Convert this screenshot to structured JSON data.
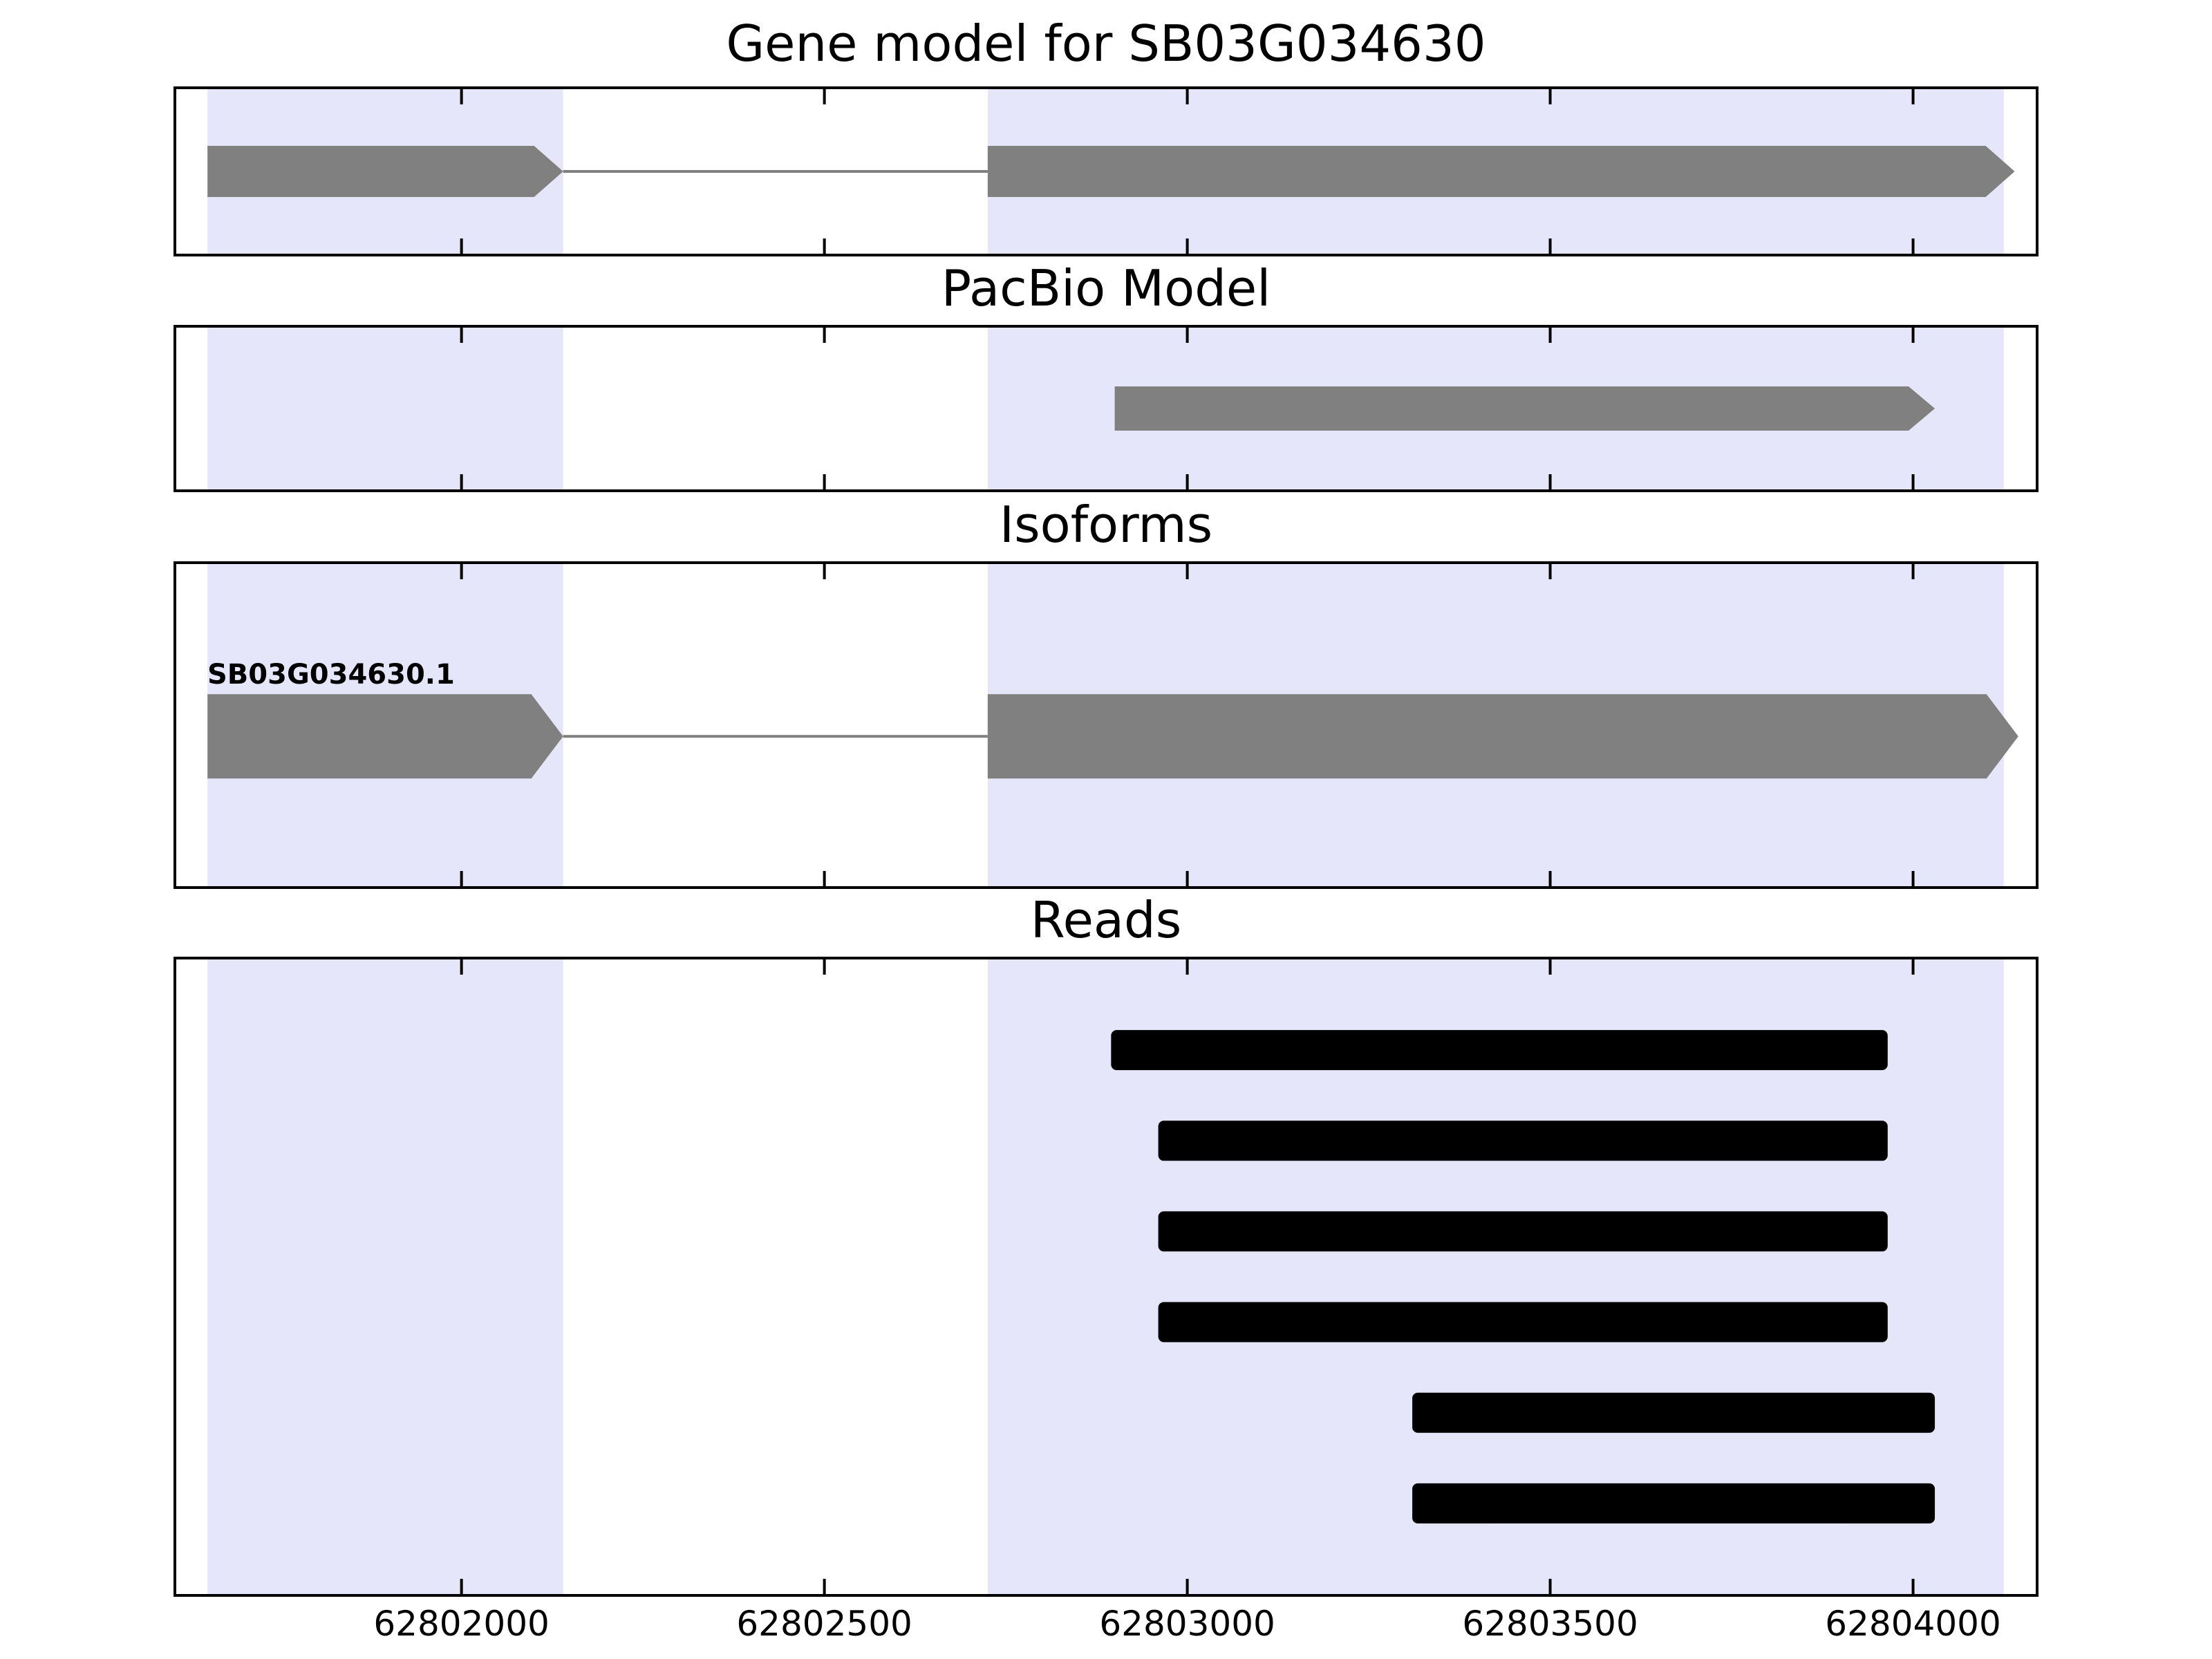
{
  "figure": {
    "background": "#ffffff",
    "border_color": "#000000"
  },
  "chart_data": {
    "type": "gene-model-tracks",
    "xlim": [
      62801607,
      62804169
    ],
    "x_ticks": [
      62802000,
      62802500,
      62803000,
      62803500,
      62804000
    ],
    "x_tick_labels": [
      "62802000",
      "62802500",
      "62803000",
      "62803500",
      "62804000"
    ],
    "colors": {
      "feature": "#808080",
      "read": "#000000",
      "highlight": "#e6e6fa",
      "axis": "#000000"
    },
    "highlight_regions": [
      {
        "start": 62801650,
        "end": 62802140
      },
      {
        "start": 62802725,
        "end": 62804125
      }
    ],
    "panels": [
      {
        "title": "Gene model for SB03G034630",
        "type": "gene",
        "features": [
          {
            "kind": "exon-arrow",
            "start": 62801650,
            "end": 62802140
          },
          {
            "kind": "intron",
            "start": 62802140,
            "end": 62802725
          },
          {
            "kind": "exon-arrow",
            "start": 62802725,
            "end": 62804140
          }
        ]
      },
      {
        "title": "PacBio Model",
        "type": "gene",
        "features": [
          {
            "kind": "exon-arrow",
            "start": 62802900,
            "end": 62804030
          }
        ]
      },
      {
        "title": "Isoforms",
        "type": "gene",
        "label": "SB03G034630.1",
        "features": [
          {
            "kind": "exon-arrow",
            "start": 62801650,
            "end": 62802140
          },
          {
            "kind": "intron",
            "start": 62802140,
            "end": 62802725
          },
          {
            "kind": "exon-arrow",
            "start": 62802725,
            "end": 62804145
          }
        ]
      },
      {
        "title": "Reads",
        "type": "reads",
        "reads": [
          {
            "start": 62802895,
            "end": 62803965
          },
          {
            "start": 62802960,
            "end": 62803965
          },
          {
            "start": 62802960,
            "end": 62803965
          },
          {
            "start": 62802960,
            "end": 62803965
          },
          {
            "start": 62803310,
            "end": 62804030
          },
          {
            "start": 62803310,
            "end": 62804030
          }
        ]
      }
    ]
  }
}
